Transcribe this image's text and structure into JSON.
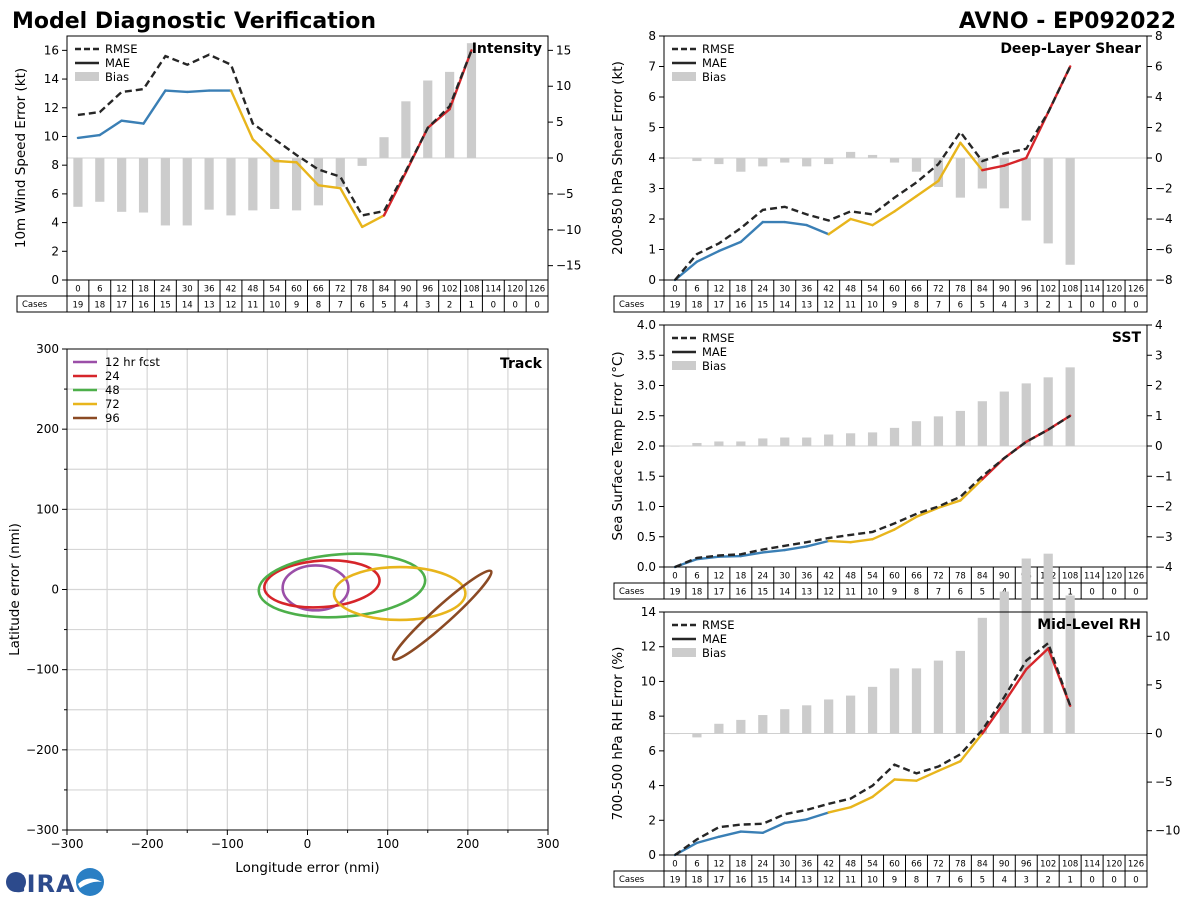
{
  "page": {
    "title_left": "Model Diagnostic Verification",
    "title_right": "AVNO - EP092022",
    "logo_text": "CIRA"
  },
  "hours": [
    "0",
    "6",
    "12",
    "18",
    "24",
    "30",
    "36",
    "42",
    "48",
    "54",
    "60",
    "66",
    "72",
    "78",
    "84",
    "90",
    "96",
    "102",
    "108",
    "114",
    "120",
    "126"
  ],
  "cases_label": "Cases",
  "cases": [
    "19",
    "18",
    "17",
    "16",
    "15",
    "14",
    "13",
    "12",
    "11",
    "10",
    "9",
    "8",
    "7",
    "6",
    "5",
    "4",
    "3",
    "2",
    "1",
    "0",
    "0",
    "0"
  ],
  "legend_labels": {
    "rmse": "RMSE",
    "mae": "MAE",
    "bias": "Bias"
  },
  "colors": {
    "blue": "#3a7fb5",
    "yellow": "#e8b51c",
    "red": "#d6252a",
    "rmse": "#262626",
    "bias": "#cccccc"
  },
  "chart_data": [
    {
      "id": "intensity",
      "type": "line+bar",
      "title": "Intensity",
      "ylabel": "10m Wind Speed Error (kt)",
      "ylim": [
        0,
        17
      ],
      "yticks": [
        "0",
        "2",
        "4",
        "6",
        "8",
        "10",
        "12",
        "14",
        "16"
      ],
      "ylim_right": [
        -17,
        17
      ],
      "yticks_right": [
        "−15",
        "−10",
        "−5",
        "0",
        "5",
        "10",
        "15"
      ],
      "rmse": [
        11.5,
        11.7,
        13.1,
        13.3,
        15.6,
        15.0,
        15.7,
        15.0,
        10.9,
        9.8,
        8.7,
        7.7,
        7.2,
        4.5,
        4.8,
        7.6,
        10.6,
        12.1,
        16.0
      ],
      "mae": [
        9.9,
        10.1,
        11.1,
        10.9,
        13.2,
        13.1,
        13.2,
        13.2,
        9.8,
        8.3,
        8.2,
        6.6,
        6.4,
        3.7,
        4.5,
        7.5,
        10.6,
        11.9,
        16.0
      ],
      "bias": [
        -6.8,
        -6.1,
        -7.5,
        -7.6,
        -9.4,
        -9.4,
        -7.2,
        -8.0,
        -7.3,
        -7.1,
        -7.3,
        -6.6,
        -4.0,
        -1.1,
        2.9,
        7.9,
        10.8,
        12.0,
        16.0
      ]
    },
    {
      "id": "shear",
      "type": "line+bar",
      "title": "Deep-Layer Shear",
      "ylabel": "200-850 hPa Shear Error (kt)",
      "ylim": [
        0,
        8
      ],
      "yticks": [
        "0",
        "1",
        "2",
        "3",
        "4",
        "5",
        "6",
        "7",
        "8"
      ],
      "ylim_right": [
        -8,
        8
      ],
      "yticks_right": [
        "−8",
        "−6",
        "−4",
        "−2",
        "0",
        "2",
        "4",
        "6",
        "8"
      ],
      "rmse": [
        0.0,
        0.85,
        1.2,
        1.7,
        2.3,
        2.4,
        2.15,
        1.95,
        2.25,
        2.15,
        2.7,
        3.2,
        3.8,
        4.85,
        3.9,
        4.15,
        4.3,
        5.5,
        7.0
      ],
      "mae": [
        0.0,
        0.6,
        0.95,
        1.25,
        1.9,
        1.9,
        1.8,
        1.5,
        2.0,
        1.8,
        2.25,
        2.75,
        3.25,
        4.5,
        3.6,
        3.75,
        4.0,
        5.5,
        7.0
      ],
      "bias": [
        0.0,
        -0.2,
        -0.4,
        -0.9,
        -0.55,
        -0.3,
        -0.55,
        -0.4,
        0.4,
        0.2,
        -0.3,
        -0.9,
        -1.9,
        -2.6,
        -2.0,
        -3.3,
        -4.1,
        -5.6,
        -7.0
      ]
    },
    {
      "id": "sst",
      "type": "line+bar",
      "title": "SST",
      "ylabel": "Sea Surface Temp Error (°C)",
      "ylim": [
        0,
        4
      ],
      "yticks": [
        "0.0",
        "0.5",
        "1.0",
        "1.5",
        "2.0",
        "2.5",
        "3.0",
        "3.5",
        "4.0"
      ],
      "ylim_right": [
        -4,
        4
      ],
      "yticks_right": [
        "−4",
        "−3",
        "−2",
        "−1",
        "0",
        "1",
        "2",
        "3",
        "4"
      ],
      "rmse": [
        0.0,
        0.15,
        0.19,
        0.21,
        0.29,
        0.35,
        0.41,
        0.48,
        0.53,
        0.58,
        0.72,
        0.88,
        1.0,
        1.16,
        1.5,
        1.8,
        2.07,
        2.27,
        2.5
      ],
      "mae": [
        0.0,
        0.13,
        0.17,
        0.18,
        0.24,
        0.28,
        0.34,
        0.43,
        0.41,
        0.46,
        0.62,
        0.83,
        0.98,
        1.1,
        1.45,
        1.8,
        2.07,
        2.27,
        2.5
      ],
      "bias": [
        0.0,
        0.1,
        0.15,
        0.15,
        0.25,
        0.28,
        0.28,
        0.38,
        0.42,
        0.45,
        0.6,
        0.82,
        0.98,
        1.16,
        1.48,
        1.8,
        2.07,
        2.27,
        2.6
      ]
    },
    {
      "id": "rh",
      "type": "line+bar",
      "title": "Mid-Level RH",
      "ylabel": "700-500 hPa RH Error (%)",
      "ylim": [
        0,
        14
      ],
      "yticks": [
        "0",
        "2",
        "4",
        "6",
        "8",
        "10",
        "12",
        "14"
      ],
      "ylim_right": [
        -12.5,
        12.5
      ],
      "yticks_right": [
        "−10",
        "−5",
        "0",
        "5",
        "10"
      ],
      "rmse": [
        0.0,
        0.9,
        1.6,
        1.75,
        1.8,
        2.35,
        2.6,
        2.95,
        3.25,
        4.0,
        5.2,
        4.7,
        5.1,
        5.8,
        7.2,
        9.1,
        11.2,
        12.2,
        8.6
      ],
      "mae": [
        0.0,
        0.7,
        1.05,
        1.35,
        1.28,
        1.85,
        2.05,
        2.45,
        2.75,
        3.35,
        4.35,
        4.28,
        4.85,
        5.4,
        7.0,
        8.8,
        10.7,
        11.9,
        8.6
      ],
      "bias": [
        0.0,
        -0.4,
        1.0,
        1.4,
        1.9,
        2.5,
        2.9,
        3.5,
        3.9,
        4.8,
        6.7,
        6.7,
        7.5,
        8.5,
        11.9,
        14.6,
        18.0,
        18.5,
        14.2
      ]
    },
    {
      "id": "track",
      "type": "ellipse",
      "title": "Track",
      "xlabel": "Longitude error (nmi)",
      "ylabel": "Latitude error (nmi)",
      "xlim": [
        -300,
        300
      ],
      "ylim": [
        -300,
        300
      ],
      "xticks": [
        "−300",
        "−200",
        "−100",
        "0",
        "100",
        "200",
        "300"
      ],
      "yticks": [
        "−300",
        "−200",
        "−100",
        "0",
        "100",
        "200",
        "300"
      ],
      "series": [
        {
          "name": "12 hr fcst",
          "color": "#9b4fa8",
          "cx": 10,
          "cy": 2,
          "rx": 41,
          "ry": 28,
          "angle": 0
        },
        {
          "name": "24",
          "color": "#d6252a",
          "cx": 18,
          "cy": 7,
          "rx": 72,
          "ry": 29,
          "angle": 4
        },
        {
          "name": "48",
          "color": "#4daf4a",
          "cx": 43,
          "cy": 5,
          "rx": 104,
          "ry": 39,
          "angle": 4
        },
        {
          "name": "72",
          "color": "#e8b51c",
          "cx": 115,
          "cy": -5,
          "rx": 82,
          "ry": 33,
          "angle": 0
        },
        {
          "name": "96",
          "color": "#8b4a24",
          "cx": 168,
          "cy": -32,
          "rx": 82,
          "ry": 11,
          "angle": 42
        }
      ]
    }
  ]
}
